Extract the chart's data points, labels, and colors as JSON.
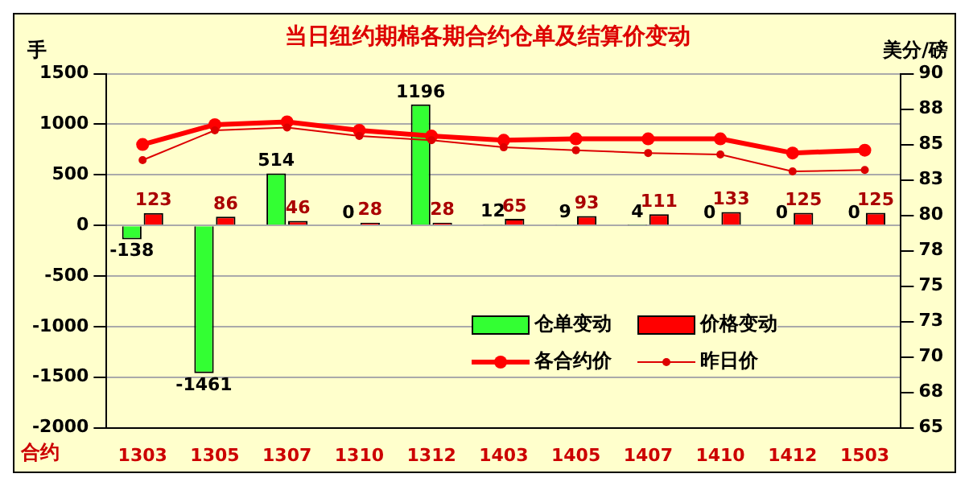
{
  "chart_data": {
    "type": "bar",
    "title": "当日纽约期棉各期合约仓单及结算价变动",
    "ylabel": "手",
    "y2label": "美分/磅",
    "xlabel": "合约",
    "categories": [
      "1303",
      "1305",
      "1307",
      "1310",
      "1312",
      "1403",
      "1405",
      "1407",
      "1410",
      "1412",
      "1503"
    ],
    "series": [
      {
        "name": "仓单变动",
        "color": "#33ff33",
        "values": [
          -138,
          -1461,
          514,
          0,
          1196,
          12,
          9,
          4,
          0,
          0,
          0
        ],
        "value_labels": [
          "-138",
          "-1461",
          "514",
          "0",
          "1196",
          "12",
          "9",
          "4",
          "0",
          "0",
          "0"
        ]
      },
      {
        "name": "价格变动",
        "color": "#ff0000",
        "values": [
          123,
          86,
          46,
          28,
          28,
          65,
          93,
          111,
          133,
          125,
          125
        ],
        "value_labels": [
          "123",
          "86",
          "46",
          "28",
          "28",
          "65",
          "93",
          "111",
          "133",
          "125",
          "125"
        ]
      },
      {
        "name": "各合约价",
        "type": "line",
        "axis": "y2",
        "color": "#ff0000",
        "values": [
          85.0,
          86.4,
          86.6,
          86.0,
          85.6,
          85.3,
          85.4,
          85.4,
          85.4,
          84.4,
          84.6
        ]
      },
      {
        "name": "昨日价",
        "type": "line",
        "axis": "y2",
        "color": "#dd0000",
        "values": [
          83.9,
          86.0,
          86.2,
          85.6,
          85.3,
          84.8,
          84.6,
          84.4,
          84.3,
          83.1,
          83.2
        ]
      }
    ],
    "ylim": [
      -2000,
      1500
    ],
    "yticks": [
      -2000,
      -1500,
      -1000,
      -500,
      0,
      500,
      1000,
      1500
    ],
    "y2lim": [
      65,
      90
    ],
    "y2ticks": [
      65,
      {
        "value": 67.5,
        "label": "68"
      },
      70,
      {
        "value": 72.5,
        "label": "73"
      },
      75,
      {
        "value": 77.5,
        "label": "78"
      },
      80,
      {
        "value": 82.5,
        "label": "83"
      },
      85,
      {
        "value": 87.5,
        "label": "88"
      },
      90
    ],
    "grid": "y",
    "legend": "bottom right",
    "marker": "circle",
    "line_style": "solid"
  }
}
